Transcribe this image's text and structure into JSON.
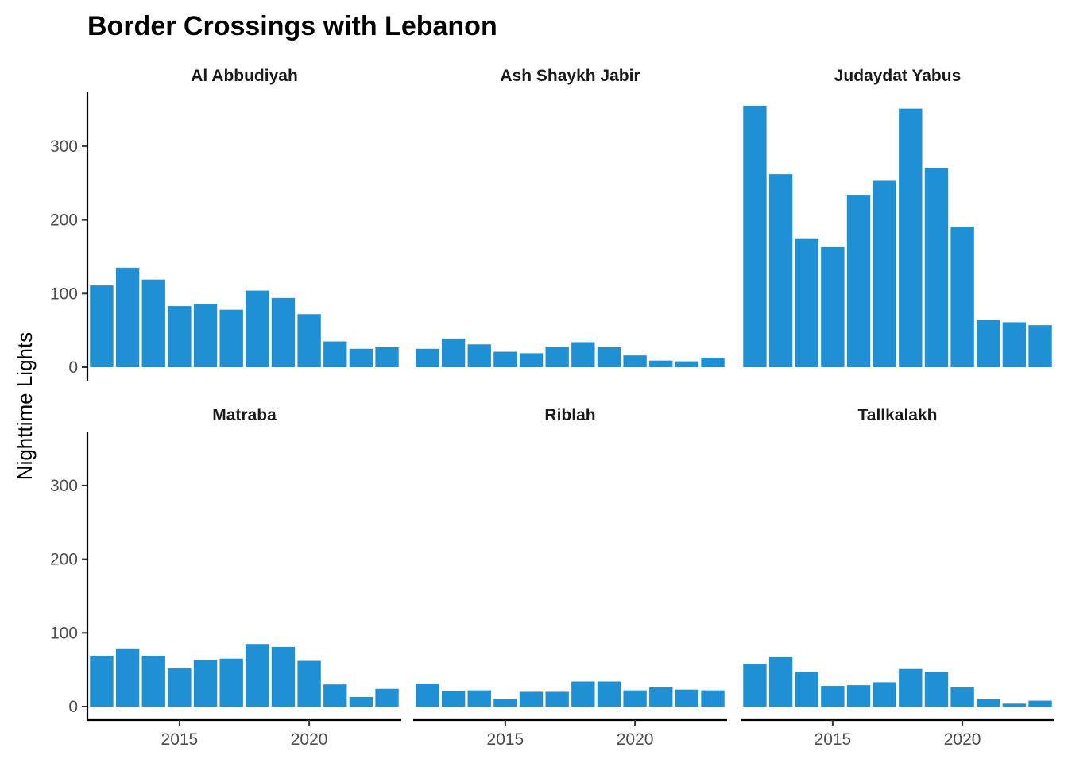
{
  "chart_data": {
    "type": "bar",
    "title": "Border Crossings with Lebanon",
    "xlabel": "",
    "ylabel": "Nighttime Lights",
    "ylim": [
      0,
      370
    ],
    "yticks": [
      0,
      100,
      200,
      300
    ],
    "xlim": [
      2011.45,
      2023.55
    ],
    "xticks": [
      2015,
      2020
    ],
    "bar_color": "#1f90d4",
    "grid": false,
    "legend": "none",
    "x": [
      2012,
      2013,
      2014,
      2015,
      2016,
      2017,
      2018,
      2019,
      2020,
      2021,
      2022,
      2023
    ],
    "facets": [
      {
        "name": "Al Abbudiyah",
        "values": [
          111,
          135,
          119,
          83,
          86,
          78,
          104,
          94,
          72,
          35,
          25,
          27
        ]
      },
      {
        "name": "Ash Shaykh Jabir",
        "values": [
          25,
          39,
          31,
          21,
          19,
          28,
          34,
          27,
          16,
          9,
          8,
          13
        ]
      },
      {
        "name": "Judaydat Yabus",
        "values": [
          355,
          262,
          174,
          163,
          234,
          253,
          351,
          270,
          191,
          64,
          61,
          57
        ]
      },
      {
        "name": "Matraba",
        "values": [
          69,
          79,
          69,
          52,
          63,
          65,
          85,
          81,
          62,
          30,
          13,
          24
        ]
      },
      {
        "name": "Riblah",
        "values": [
          31,
          21,
          22,
          10,
          20,
          20,
          34,
          34,
          22,
          26,
          23,
          22
        ]
      },
      {
        "name": "Tallkalakh",
        "values": [
          58,
          67,
          47,
          28,
          29,
          33,
          51,
          47,
          26,
          10,
          4,
          8
        ]
      }
    ]
  }
}
